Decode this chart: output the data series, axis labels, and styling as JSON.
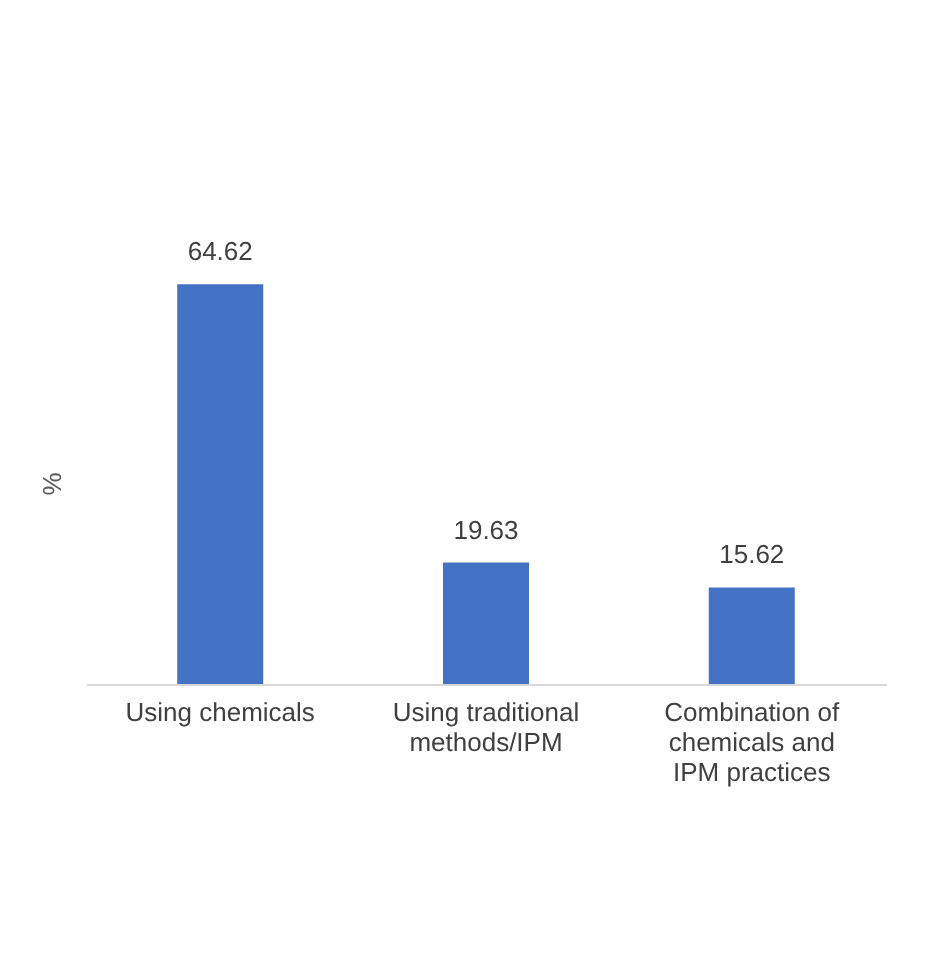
{
  "chart_data": {
    "type": "bar",
    "ylabel": "%",
    "categories": [
      "Using chemicals",
      "Using traditional\nmethods/IPM",
      "Combination of\nchemicals and\nIPM practices"
    ],
    "values": [
      64.62,
      19.63,
      15.62
    ],
    "color": "#4472c4",
    "data_labels": true,
    "grid": false
  }
}
